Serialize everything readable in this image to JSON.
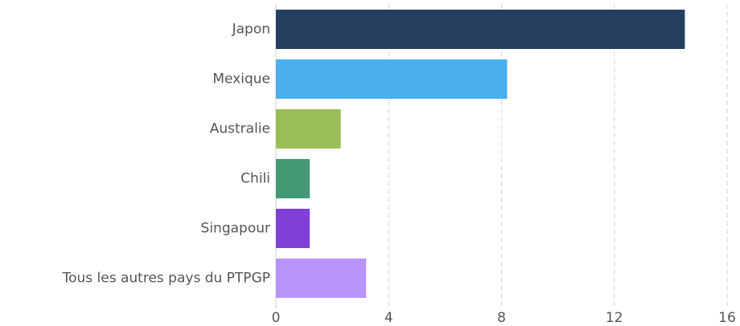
{
  "chart_data": {
    "type": "bar",
    "orientation": "horizontal",
    "categories": [
      "Japon",
      "Mexique",
      "Australie",
      "Chili",
      "Singapour",
      "Tous les autres pays du PTPGP"
    ],
    "values": [
      14.5,
      8.2,
      2.3,
      1.2,
      1.2,
      3.2
    ],
    "colors": [
      "#243f60",
      "#4aaeea",
      "#9bbf56",
      "#449a74",
      "#8040d8",
      "#b894fa"
    ],
    "xlim": [
      0,
      16
    ],
    "xticks": [
      0,
      4,
      8,
      12,
      16
    ],
    "grid": true
  }
}
